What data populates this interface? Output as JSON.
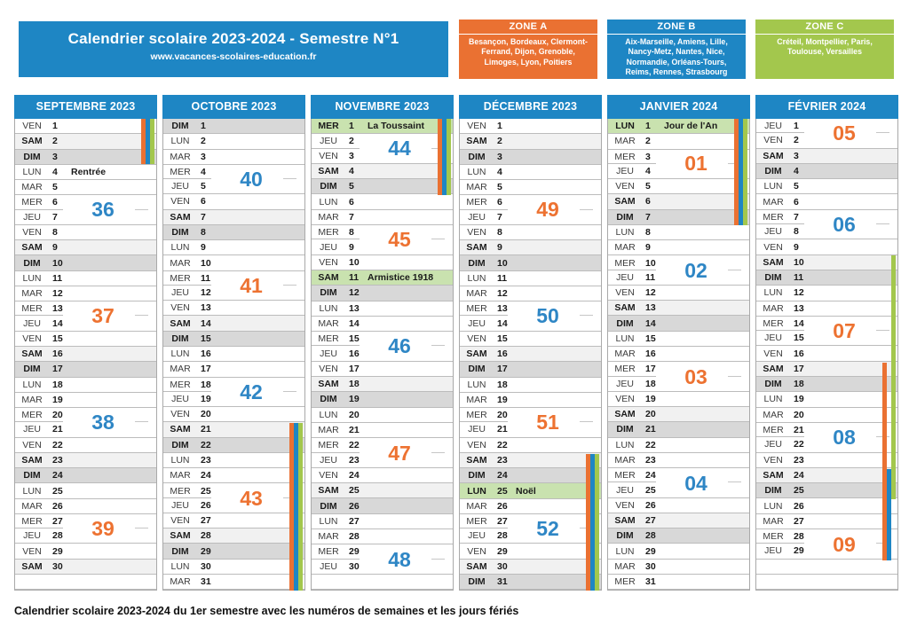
{
  "header": {
    "title": "Calendrier scolaire 2023-2024 - Semestre N°1",
    "url": "www.vacances-scolaires-education.fr"
  },
  "zones": [
    {
      "label": "ZONE A",
      "color": "#ea7132",
      "cities": "Besançon, Bordeaux, Clermont-Ferrand, Dijon, Grenoble, Limoges, Lyon, Poitiers"
    },
    {
      "label": "ZONE B",
      "color": "#1e86c4",
      "cities": "Aix-Marseille, Amiens, Lille, Nancy-Metz, Nantes, Nice, Normandie, Orléans-Tours, Reims, Rennes, Strasbourg"
    },
    {
      "label": "ZONE C",
      "color": "#a3c74d",
      "cities": "Créteil, Montpellier, Paris, Toulouse, Versailles"
    }
  ],
  "colors": {
    "primary_blue": "#1e86c4",
    "zone_a_orange": "#ea7132",
    "zone_b_blue": "#1e86c4",
    "zone_c_green": "#a3c74d",
    "holiday_row_green": "#c9e2af",
    "saturday_gray": "#f1f1f1",
    "sunday_gray": "#d8d8d8",
    "week_number_blue": "#2e86c5",
    "week_number_orange": "#ed7231"
  },
  "calendar": {
    "months": [
      {
        "name": "SEPTEMBRE 2023",
        "days": [
          [
            "VEN",
            1
          ],
          [
            "SAM",
            2
          ],
          [
            "DIM",
            3
          ],
          [
            "LUN",
            4,
            "Rentrée"
          ],
          [
            "MAR",
            5
          ],
          [
            "MER",
            6
          ],
          [
            "JEU",
            7
          ],
          [
            "VEN",
            8
          ],
          [
            "SAM",
            9
          ],
          [
            "DIM",
            10
          ],
          [
            "LUN",
            11
          ],
          [
            "MAR",
            12
          ],
          [
            "MER",
            13
          ],
          [
            "JEU",
            14
          ],
          [
            "VEN",
            15
          ],
          [
            "SAM",
            16
          ],
          [
            "DIM",
            17
          ],
          [
            "LUN",
            18
          ],
          [
            "MAR",
            19
          ],
          [
            "MER",
            20
          ],
          [
            "JEU",
            21
          ],
          [
            "VEN",
            22
          ],
          [
            "SAM",
            23
          ],
          [
            "DIM",
            24
          ],
          [
            "LUN",
            25
          ],
          [
            "MAR",
            26
          ],
          [
            "MER",
            27
          ],
          [
            "JEU",
            28
          ],
          [
            "VEN",
            29
          ],
          [
            "SAM",
            30
          ],
          [
            "",
            ""
          ]
        ],
        "weeks": [
          {
            "num": "36",
            "color": "blue",
            "after": 5
          },
          {
            "num": "37",
            "color": "orange",
            "after": 12
          },
          {
            "num": "38",
            "color": "blue",
            "after": 19
          },
          {
            "num": "39",
            "color": "orange",
            "after": 26
          }
        ],
        "stripes": [
          {
            "zone": "A",
            "from": 0,
            "to": 2
          },
          {
            "zone": "B",
            "from": 0,
            "to": 2
          },
          {
            "zone": "C",
            "from": 0,
            "to": 2
          }
        ]
      },
      {
        "name": "OCTOBRE 2023",
        "days": [
          [
            "DIM",
            1
          ],
          [
            "LUN",
            2
          ],
          [
            "MAR",
            3
          ],
          [
            "MER",
            4
          ],
          [
            "JEU",
            5
          ],
          [
            "VEN",
            6
          ],
          [
            "SAM",
            7
          ],
          [
            "DIM",
            8
          ],
          [
            "LUN",
            9
          ],
          [
            "MAR",
            10
          ],
          [
            "MER",
            11
          ],
          [
            "JEU",
            12
          ],
          [
            "VEN",
            13
          ],
          [
            "SAM",
            14
          ],
          [
            "DIM",
            15
          ],
          [
            "LUN",
            16
          ],
          [
            "MAR",
            17
          ],
          [
            "MER",
            18
          ],
          [
            "JEU",
            19
          ],
          [
            "VEN",
            20
          ],
          [
            "SAM",
            21
          ],
          [
            "DIM",
            22
          ],
          [
            "LUN",
            23
          ],
          [
            "MAR",
            24
          ],
          [
            "MER",
            25
          ],
          [
            "JEU",
            26
          ],
          [
            "VEN",
            27
          ],
          [
            "SAM",
            28
          ],
          [
            "DIM",
            29
          ],
          [
            "LUN",
            30
          ],
          [
            "MAR",
            31
          ]
        ],
        "weeks": [
          {
            "num": "40",
            "color": "blue",
            "after": 3
          },
          {
            "num": "41",
            "color": "orange",
            "after": 10
          },
          {
            "num": "42",
            "color": "blue",
            "after": 17
          },
          {
            "num": "43",
            "color": "orange",
            "after": 24
          }
        ],
        "stripes": [
          {
            "zone": "A",
            "from": 20,
            "to": 30
          },
          {
            "zone": "B",
            "from": 20,
            "to": 30
          },
          {
            "zone": "C",
            "from": 20,
            "to": 30
          }
        ]
      },
      {
        "name": "NOVEMBRE 2023",
        "days": [
          [
            "MER",
            1,
            "La Toussaint",
            "hl"
          ],
          [
            "JEU",
            2
          ],
          [
            "VEN",
            3
          ],
          [
            "SAM",
            4
          ],
          [
            "DIM",
            5
          ],
          [
            "LUN",
            6
          ],
          [
            "MAR",
            7
          ],
          [
            "MER",
            8
          ],
          [
            "JEU",
            9
          ],
          [
            "VEN",
            10
          ],
          [
            "SAM",
            11,
            "Armistice 1918",
            "hl"
          ],
          [
            "DIM",
            12
          ],
          [
            "LUN",
            13
          ],
          [
            "MAR",
            14
          ],
          [
            "MER",
            15
          ],
          [
            "JEU",
            16
          ],
          [
            "VEN",
            17
          ],
          [
            "SAM",
            18
          ],
          [
            "DIM",
            19
          ],
          [
            "LUN",
            20
          ],
          [
            "MAR",
            21
          ],
          [
            "MER",
            22
          ],
          [
            "JEU",
            23
          ],
          [
            "VEN",
            24
          ],
          [
            "SAM",
            25
          ],
          [
            "DIM",
            26
          ],
          [
            "LUN",
            27
          ],
          [
            "MAR",
            28
          ],
          [
            "MER",
            29
          ],
          [
            "JEU",
            30
          ],
          [
            "",
            ""
          ]
        ],
        "weeks": [
          {
            "num": "44",
            "color": "blue",
            "after": 1
          },
          {
            "num": "45",
            "color": "orange",
            "after": 7
          },
          {
            "num": "46",
            "color": "blue",
            "after": 14
          },
          {
            "num": "47",
            "color": "orange",
            "after": 21
          },
          {
            "num": "48",
            "color": "blue",
            "after": 28
          }
        ],
        "stripes": [
          {
            "zone": "A",
            "from": 0,
            "to": 4
          },
          {
            "zone": "B",
            "from": 0,
            "to": 4
          },
          {
            "zone": "C",
            "from": 0,
            "to": 4
          }
        ]
      },
      {
        "name": "DÉCEMBRE 2023",
        "days": [
          [
            "VEN",
            1
          ],
          [
            "SAM",
            2
          ],
          [
            "DIM",
            3
          ],
          [
            "LUN",
            4
          ],
          [
            "MAR",
            5
          ],
          [
            "MER",
            6
          ],
          [
            "JEU",
            7
          ],
          [
            "VEN",
            8
          ],
          [
            "SAM",
            9
          ],
          [
            "DIM",
            10
          ],
          [
            "LUN",
            11
          ],
          [
            "MAR",
            12
          ],
          [
            "MER",
            13
          ],
          [
            "JEU",
            14
          ],
          [
            "VEN",
            15
          ],
          [
            "SAM",
            16
          ],
          [
            "DIM",
            17
          ],
          [
            "LUN",
            18
          ],
          [
            "MAR",
            19
          ],
          [
            "MER",
            20
          ],
          [
            "JEU",
            21
          ],
          [
            "VEN",
            22
          ],
          [
            "SAM",
            23
          ],
          [
            "DIM",
            24
          ],
          [
            "LUN",
            25,
            "Noël",
            "hl"
          ],
          [
            "MAR",
            26
          ],
          [
            "MER",
            27
          ],
          [
            "JEU",
            28
          ],
          [
            "VEN",
            29
          ],
          [
            "SAM",
            30
          ],
          [
            "DIM",
            31
          ]
        ],
        "weeks": [
          {
            "num": "49",
            "color": "orange",
            "after": 5
          },
          {
            "num": "50",
            "color": "blue",
            "after": 12
          },
          {
            "num": "51",
            "color": "orange",
            "after": 19
          },
          {
            "num": "52",
            "color": "blue",
            "after": 26
          }
        ],
        "stripes": [
          {
            "zone": "A",
            "from": 22,
            "to": 30
          },
          {
            "zone": "B",
            "from": 22,
            "to": 30
          },
          {
            "zone": "C",
            "from": 22,
            "to": 30
          }
        ]
      },
      {
        "name": "JANVIER 2024",
        "days": [
          [
            "LUN",
            1,
            "Jour de l'An",
            "hl"
          ],
          [
            "MAR",
            2
          ],
          [
            "MER",
            3
          ],
          [
            "JEU",
            4
          ],
          [
            "VEN",
            5
          ],
          [
            "SAM",
            6
          ],
          [
            "DIM",
            7
          ],
          [
            "LUN",
            8
          ],
          [
            "MAR",
            9
          ],
          [
            "MER",
            10
          ],
          [
            "JEU",
            11
          ],
          [
            "VEN",
            12
          ],
          [
            "SAM",
            13
          ],
          [
            "DIM",
            14
          ],
          [
            "LUN",
            15
          ],
          [
            "MAR",
            16
          ],
          [
            "MER",
            17
          ],
          [
            "JEU",
            18
          ],
          [
            "VEN",
            19
          ],
          [
            "SAM",
            20
          ],
          [
            "DIM",
            21
          ],
          [
            "LUN",
            22
          ],
          [
            "MAR",
            23
          ],
          [
            "MER",
            24
          ],
          [
            "JEU",
            25
          ],
          [
            "VEN",
            26
          ],
          [
            "SAM",
            27
          ],
          [
            "DIM",
            28
          ],
          [
            "LUN",
            29
          ],
          [
            "MAR",
            30
          ],
          [
            "MER",
            31
          ]
        ],
        "weeks": [
          {
            "num": "01",
            "color": "orange",
            "after": 2
          },
          {
            "num": "02",
            "color": "blue",
            "after": 9
          },
          {
            "num": "03",
            "color": "orange",
            "after": 16
          },
          {
            "num": "04",
            "color": "blue",
            "after": 23
          }
        ],
        "stripes": [
          {
            "zone": "A",
            "from": 0,
            "to": 6
          },
          {
            "zone": "B",
            "from": 0,
            "to": 6
          },
          {
            "zone": "C",
            "from": 0,
            "to": 6
          }
        ]
      },
      {
        "name": "FÉVRIER 2024",
        "days": [
          [
            "JEU",
            1
          ],
          [
            "VEN",
            2
          ],
          [
            "SAM",
            3
          ],
          [
            "DIM",
            4
          ],
          [
            "LUN",
            5
          ],
          [
            "MAR",
            6
          ],
          [
            "MER",
            7
          ],
          [
            "JEU",
            8
          ],
          [
            "VEN",
            9
          ],
          [
            "SAM",
            10
          ],
          [
            "DIM",
            11
          ],
          [
            "LUN",
            12
          ],
          [
            "MAR",
            13
          ],
          [
            "MER",
            14
          ],
          [
            "JEU",
            15
          ],
          [
            "VEN",
            16
          ],
          [
            "SAM",
            17
          ],
          [
            "DIM",
            18
          ],
          [
            "LUN",
            19
          ],
          [
            "MAR",
            20
          ],
          [
            "MER",
            21
          ],
          [
            "JEU",
            22
          ],
          [
            "VEN",
            23
          ],
          [
            "SAM",
            24
          ],
          [
            "DIM",
            25
          ],
          [
            "LUN",
            26
          ],
          [
            "MAR",
            27
          ],
          [
            "MER",
            28
          ],
          [
            "JEU",
            29
          ],
          [
            "",
            ""
          ],
          [
            "",
            ""
          ]
        ],
        "weeks": [
          {
            "num": "05",
            "color": "orange",
            "after": 0
          },
          {
            "num": "06",
            "color": "blue",
            "after": 6
          },
          {
            "num": "07",
            "color": "orange",
            "after": 13
          },
          {
            "num": "08",
            "color": "blue",
            "after": 20
          },
          {
            "num": "09",
            "color": "orange",
            "after": 27
          }
        ],
        "stripes": [
          {
            "zone": "C",
            "from": 9,
            "to": 24
          },
          {
            "zone": "A",
            "from": 16,
            "to": 28
          },
          {
            "zone": "B",
            "from": 23,
            "to": 28
          }
        ]
      }
    ]
  },
  "footer": {
    "caption": "Calendrier scolaire 2023-2024 du 1er semestre avec les numéros de semaines et les jours fériés"
  }
}
